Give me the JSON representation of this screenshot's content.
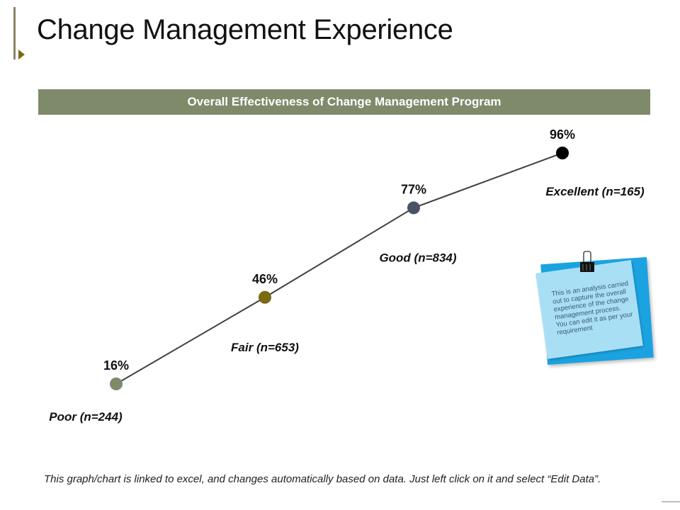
{
  "slide": {
    "title": "Change Management Experience",
    "footer": "This graph/chart is linked to excel, and changes automatically based on data. Just left click on it and select “Edit Data”."
  },
  "note": {
    "text": "This is an analysis carried out to capture the overall experience of the change management process. You can edit it as per your requirement",
    "icon": "binder-clip-icon"
  },
  "colors": {
    "banner": "#7f8a6b",
    "line": "#404040",
    "note_back": "#1aa3e0",
    "note_front": "#a9dff4"
  },
  "chart_data": {
    "type": "line",
    "title": "Overall Effectiveness of Change Management Program",
    "categories": [
      "Poor (n=244)",
      "Fair (n=653)",
      "Good (n=834)",
      "Excellent (n=165)"
    ],
    "values": [
      16,
      46,
      77,
      96
    ],
    "value_labels": [
      "16%",
      "46%",
      "77%",
      "96%"
    ],
    "point_colors": [
      "#7f8a6b",
      "#7a6a10",
      "#4a5366",
      "#000000"
    ],
    "ylim": [
      0,
      100
    ],
    "xlabel": "",
    "ylabel": "",
    "grid": false,
    "legend": "none"
  }
}
